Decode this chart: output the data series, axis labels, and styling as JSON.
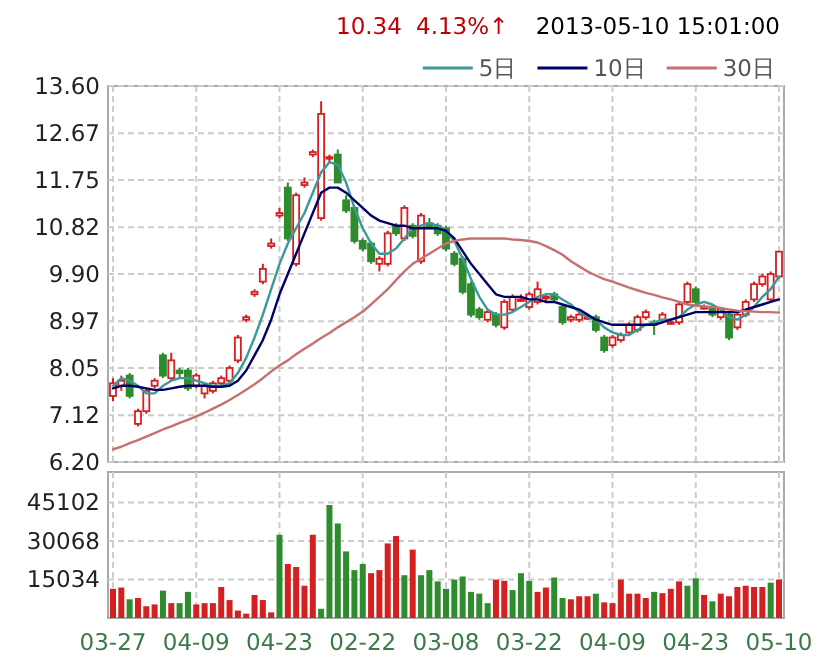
{
  "chart_data": [
    {
      "type": "candlestick",
      "categories": [
        null,
        null,
        null,
        null,
        null,
        null,
        null,
        null,
        null,
        null,
        null,
        null,
        null,
        null,
        null,
        null,
        null,
        null,
        null,
        null,
        null,
        null,
        null,
        null,
        null,
        null,
        null,
        null,
        null,
        null,
        null,
        null,
        null,
        null,
        null,
        null,
        null,
        null,
        null,
        null,
        null,
        null,
        null,
        null,
        null,
        null,
        null,
        null,
        null,
        null,
        null,
        null,
        null,
        null,
        null,
        null,
        null,
        null,
        null,
        null,
        null,
        null,
        null,
        null,
        null,
        null,
        null,
        null,
        null,
        null,
        null,
        null,
        null,
        null,
        null,
        null,
        null,
        null,
        null,
        null,
        null
      ],
      "ohlc": [
        [
          7.5,
          7.85,
          7.4,
          7.75
        ],
        [
          7.7,
          7.9,
          7.6,
          7.8
        ],
        [
          7.9,
          7.95,
          7.45,
          7.5
        ],
        [
          6.95,
          7.25,
          6.9,
          7.2
        ],
        [
          7.2,
          7.65,
          7.15,
          7.6
        ],
        [
          7.7,
          7.85,
          7.65,
          7.8
        ],
        [
          8.3,
          8.35,
          7.85,
          7.9
        ],
        [
          7.85,
          8.35,
          7.8,
          8.2
        ],
        [
          8.0,
          8.05,
          7.85,
          7.95
        ],
        [
          8.0,
          8.05,
          7.6,
          7.65
        ],
        [
          7.7,
          7.95,
          7.65,
          7.9
        ],
        [
          7.55,
          7.75,
          7.45,
          7.7
        ],
        [
          7.6,
          7.8,
          7.55,
          7.75
        ],
        [
          7.75,
          7.9,
          7.7,
          7.85
        ],
        [
          7.8,
          8.1,
          7.75,
          8.05
        ],
        [
          8.2,
          8.7,
          8.15,
          8.65
        ],
        [
          9.0,
          9.1,
          8.95,
          9.05
        ],
        [
          9.5,
          9.6,
          9.45,
          9.55
        ],
        [
          9.75,
          10.1,
          9.7,
          10.0
        ],
        [
          10.45,
          10.6,
          10.4,
          10.5
        ],
        [
          11.05,
          11.2,
          11.0,
          11.1
        ],
        [
          11.6,
          11.7,
          10.55,
          10.6
        ],
        [
          10.1,
          11.5,
          10.05,
          11.45
        ],
        [
          11.65,
          11.8,
          11.6,
          11.7
        ],
        [
          12.25,
          12.35,
          12.2,
          12.3
        ],
        [
          11.0,
          13.3,
          10.95,
          13.05
        ],
        [
          12.2,
          12.25,
          12.1,
          12.2
        ],
        [
          12.25,
          12.35,
          11.7,
          11.7
        ],
        [
          11.35,
          11.45,
          11.1,
          11.15
        ],
        [
          11.2,
          11.25,
          10.5,
          10.55
        ],
        [
          10.55,
          10.6,
          10.35,
          10.4
        ],
        [
          10.5,
          10.55,
          10.1,
          10.15
        ],
        [
          10.1,
          10.25,
          9.95,
          10.2
        ],
        [
          10.1,
          10.75,
          10.05,
          10.7
        ],
        [
          10.85,
          10.9,
          10.65,
          10.7
        ],
        [
          10.6,
          11.25,
          10.55,
          11.2
        ],
        [
          10.85,
          10.9,
          10.6,
          10.65
        ],
        [
          10.15,
          11.1,
          10.1,
          11.05
        ],
        [
          10.9,
          11.0,
          10.8,
          10.8
        ],
        [
          10.85,
          10.9,
          10.65,
          10.7
        ],
        [
          10.8,
          10.85,
          10.35,
          10.4
        ],
        [
          10.3,
          10.35,
          10.05,
          10.1
        ],
        [
          10.2,
          10.25,
          9.5,
          9.55
        ],
        [
          9.7,
          9.75,
          9.05,
          9.1
        ],
        [
          9.2,
          9.25,
          9.0,
          9.05
        ],
        [
          9.0,
          9.2,
          8.95,
          9.15
        ],
        [
          9.1,
          9.15,
          8.85,
          8.9
        ],
        [
          8.85,
          9.4,
          8.8,
          9.35
        ],
        [
          9.2,
          9.5,
          9.15,
          9.45
        ],
        [
          9.4,
          9.5,
          9.35,
          9.4
        ],
        [
          9.25,
          9.55,
          9.2,
          9.5
        ],
        [
          9.35,
          9.75,
          9.3,
          9.6
        ],
        [
          9.45,
          9.5,
          9.35,
          9.45
        ],
        [
          9.5,
          9.55,
          9.35,
          9.4
        ],
        [
          9.25,
          9.3,
          8.9,
          8.95
        ],
        [
          9.0,
          9.1,
          8.95,
          9.05
        ],
        [
          9.0,
          9.15,
          8.95,
          9.1
        ],
        [
          9.05,
          9.1,
          9.0,
          9.05
        ],
        [
          9.05,
          9.1,
          8.75,
          8.8
        ],
        [
          8.65,
          8.7,
          8.35,
          8.4
        ],
        [
          8.5,
          8.7,
          8.45,
          8.65
        ],
        [
          8.6,
          8.75,
          8.55,
          8.7
        ],
        [
          8.75,
          8.95,
          8.7,
          8.9
        ],
        [
          8.8,
          9.1,
          8.75,
          9.05
        ],
        [
          9.05,
          9.2,
          9.0,
          9.15
        ],
        [
          8.95,
          9.0,
          8.7,
          8.9
        ],
        [
          9.0,
          9.15,
          8.95,
          9.1
        ],
        [
          8.95,
          9.0,
          8.9,
          8.95
        ],
        [
          8.95,
          9.35,
          8.9,
          9.3
        ],
        [
          9.35,
          9.75,
          9.3,
          9.7
        ],
        [
          9.6,
          9.65,
          9.3,
          9.35
        ],
        [
          9.25,
          9.3,
          9.2,
          9.25
        ],
        [
          9.25,
          9.3,
          9.05,
          9.1
        ],
        [
          9.05,
          9.25,
          9.0,
          9.2
        ],
        [
          9.1,
          9.15,
          8.6,
          8.65
        ],
        [
          8.85,
          9.15,
          8.8,
          9.1
        ],
        [
          9.1,
          9.4,
          9.05,
          9.35
        ],
        [
          9.4,
          9.75,
          9.35,
          9.7
        ],
        [
          9.7,
          9.9,
          9.65,
          9.85
        ],
        [
          9.4,
          9.95,
          9.35,
          9.9
        ],
        [
          9.85,
          10.34,
          9.8,
          10.34
        ]
      ],
      "series": [
        {
          "name": "5日",
          "type": "line",
          "color": "#3a9a9a",
          "values": [
            7.7,
            7.85,
            7.8,
            7.7,
            7.55,
            7.55,
            7.7,
            7.8,
            7.85,
            7.85,
            7.8,
            7.75,
            7.7,
            7.7,
            7.75,
            7.95,
            8.25,
            8.65,
            9.1,
            9.6,
            10.1,
            10.5,
            10.8,
            11.1,
            11.5,
            11.9,
            12.1,
            12.05,
            11.7,
            11.2,
            10.8,
            10.5,
            10.3,
            10.3,
            10.4,
            10.6,
            10.8,
            10.85,
            10.9,
            10.85,
            10.75,
            10.55,
            10.2,
            9.8,
            9.45,
            9.2,
            9.1,
            9.1,
            9.15,
            9.25,
            9.35,
            9.45,
            9.5,
            9.5,
            9.4,
            9.3,
            9.15,
            9.05,
            9.0,
            8.85,
            8.75,
            8.7,
            8.7,
            8.8,
            8.9,
            8.95,
            9.0,
            9.0,
            9.05,
            9.2,
            9.3,
            9.35,
            9.3,
            9.2,
            9.05,
            9.0,
            9.1,
            9.25,
            9.45,
            9.6,
            9.85
          ]
        },
        {
          "name": "10日",
          "type": "line",
          "color": "#000066",
          "values": [
            7.65,
            7.7,
            7.7,
            7.68,
            7.65,
            7.62,
            7.62,
            7.65,
            7.68,
            7.7,
            7.7,
            7.7,
            7.68,
            7.68,
            7.7,
            7.8,
            8.0,
            8.3,
            8.6,
            9.0,
            9.5,
            9.9,
            10.3,
            10.7,
            11.1,
            11.5,
            11.6,
            11.6,
            11.5,
            11.35,
            11.2,
            11.05,
            10.95,
            10.9,
            10.85,
            10.85,
            10.8,
            10.8,
            10.8,
            10.8,
            10.75,
            10.6,
            10.35,
            10.1,
            9.9,
            9.7,
            9.5,
            9.45,
            9.45,
            9.45,
            9.4,
            9.4,
            9.35,
            9.35,
            9.3,
            9.25,
            9.2,
            9.1,
            9.0,
            8.95,
            8.9,
            8.9,
            8.9,
            8.9,
            8.9,
            8.9,
            8.95,
            9.0,
            9.05,
            9.1,
            9.15,
            9.15,
            9.15,
            9.15,
            9.15,
            9.15,
            9.2,
            9.25,
            9.3,
            9.35,
            9.4
          ]
        },
        {
          "name": "30日",
          "type": "line",
          "color": "#c87070",
          "values": [
            6.45,
            6.5,
            6.57,
            6.63,
            6.7,
            6.77,
            6.84,
            6.9,
            6.97,
            7.03,
            7.1,
            7.17,
            7.25,
            7.33,
            7.42,
            7.52,
            7.62,
            7.73,
            7.85,
            7.98,
            8.1,
            8.2,
            8.32,
            8.43,
            8.53,
            8.64,
            8.74,
            8.85,
            8.95,
            9.05,
            9.16,
            9.3,
            9.45,
            9.6,
            9.78,
            9.95,
            10.1,
            10.2,
            10.3,
            10.4,
            10.5,
            10.55,
            10.58,
            10.6,
            10.6,
            10.6,
            10.6,
            10.6,
            10.58,
            10.57,
            10.55,
            10.52,
            10.45,
            10.37,
            10.28,
            10.15,
            10.05,
            9.95,
            9.87,
            9.8,
            9.75,
            9.69,
            9.63,
            9.58,
            9.53,
            9.49,
            9.44,
            9.4,
            9.35,
            9.3,
            9.28,
            9.26,
            9.25,
            9.23,
            9.2,
            9.18,
            9.17,
            9.16,
            9.15,
            9.15,
            9.14
          ]
        }
      ],
      "ylim": [
        6.2,
        13.6
      ],
      "yticks": [
        {
          "value": 13.6,
          "label": "13.60"
        },
        {
          "value": 12.67,
          "label": "12.67"
        },
        {
          "value": 11.75,
          "label": "11.75"
        },
        {
          "value": 10.82,
          "label": "10.82"
        },
        {
          "value": 9.9,
          "label": "9.90"
        },
        {
          "value": 8.97,
          "label": "8.97"
        },
        {
          "value": 8.05,
          "label": "8.05"
        },
        {
          "value": 7.12,
          "label": "7.12"
        },
        {
          "value": 6.2,
          "label": "6.20"
        }
      ],
      "grid": true,
      "legend": "top right",
      "tick_labels": "y",
      "annotations": [
        "10.34",
        "4.13%↑",
        "2013-05-10 15:01:00"
      ]
    },
    {
      "type": "bar",
      "categories": [
        "03-27",
        null,
        null,
        null,
        null,
        null,
        null,
        null,
        null,
        null,
        "04-09",
        null,
        null,
        null,
        null,
        null,
        null,
        null,
        null,
        null,
        "04-23",
        null,
        null,
        null,
        null,
        null,
        null,
        null,
        null,
        null,
        "02-22",
        null,
        null,
        null,
        null,
        null,
        null,
        null,
        null,
        null,
        "03-08",
        null,
        null,
        null,
        null,
        null,
        null,
        null,
        null,
        null,
        "03-22",
        null,
        null,
        null,
        null,
        null,
        null,
        null,
        null,
        null,
        "04-09",
        null,
        null,
        null,
        null,
        null,
        null,
        null,
        null,
        null,
        "04-23",
        null,
        null,
        null,
        null,
        null,
        null,
        null,
        null,
        null,
        "05-10"
      ],
      "values": [
        11400,
        11900,
        7300,
        7800,
        4600,
        5300,
        10700,
        5800,
        5800,
        10200,
        5300,
        5800,
        5800,
        12100,
        7000,
        2900,
        1700,
        9000,
        7000,
        2200,
        32500,
        21100,
        19900,
        12600,
        32500,
        3600,
        44100,
        36900,
        26000,
        18700,
        21100,
        17500,
        18700,
        29100,
        32000,
        16700,
        26700,
        16700,
        18700,
        14300,
        11400,
        15000,
        16200,
        10200,
        9500,
        5800,
        15000,
        14500,
        10900,
        17500,
        14500,
        10200,
        11900,
        15800,
        7800,
        7300,
        8500,
        8500,
        9500,
        6100,
        5800,
        15000,
        9500,
        9500,
        7800,
        10200,
        9700,
        11400,
        14300,
        12600,
        15500,
        9000,
        6500,
        9500,
        8500,
        12100,
        12600,
        12100,
        12100,
        13800,
        15000
      ],
      "colors": [
        "#d42020",
        "#d42020",
        "#2e8b2e",
        "#d42020",
        "#d42020",
        "#d42020",
        "#2e8b2e",
        "#d42020",
        "#2e8b2e",
        "#2e8b2e",
        "#d42020",
        "#d42020",
        "#d42020",
        "#d42020",
        "#d42020",
        "#d42020",
        "#d42020",
        "#d42020",
        "#d42020",
        "#d42020",
        "#2e8b2e",
        "#d42020",
        "#d42020",
        "#d42020",
        "#d42020",
        "#2e8b2e",
        "#2e8b2e",
        "#2e8b2e",
        "#2e8b2e",
        "#2e8b2e",
        "#2e8b2e",
        "#d42020",
        "#d42020",
        "#d42020",
        "#d42020",
        "#2e8b2e",
        "#d42020",
        "#2e8b2e",
        "#2e8b2e",
        "#2e8b2e",
        "#2e8b2e",
        "#2e8b2e",
        "#2e8b2e",
        "#2e8b2e",
        "#2e8b2e",
        "#2e8b2e",
        "#d42020",
        "#d42020",
        "#2e8b2e",
        "#2e8b2e",
        "#2e8b2e",
        "#d42020",
        "#d42020",
        "#2e8b2e",
        "#2e8b2e",
        "#d42020",
        "#d42020",
        "#d42020",
        "#2e8b2e",
        "#d42020",
        "#d42020",
        "#d42020",
        "#d42020",
        "#d42020",
        "#d42020",
        "#2e8b2e",
        "#d42020",
        "#d42020",
        "#d42020",
        "#2e8b2e",
        "#2e8b2e",
        "#d42020",
        "#2e8b2e",
        "#d42020",
        "#d42020",
        "#d42020",
        "#d42020",
        "#d42020",
        "#d42020",
        "#2e8b2e",
        "#d42020"
      ],
      "ylim": [
        0,
        57000
      ],
      "yticks": [
        15034,
        30068,
        45102
      ],
      "grid": true
    }
  ]
}
